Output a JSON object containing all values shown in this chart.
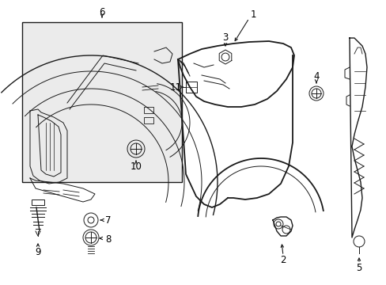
{
  "bg_color": "#ffffff",
  "box_fill": "#e8e8e8",
  "line_color": "#1a1a1a",
  "fig_width": 4.89,
  "fig_height": 3.6,
  "dpi": 100,
  "label_fontsize": 8.5
}
